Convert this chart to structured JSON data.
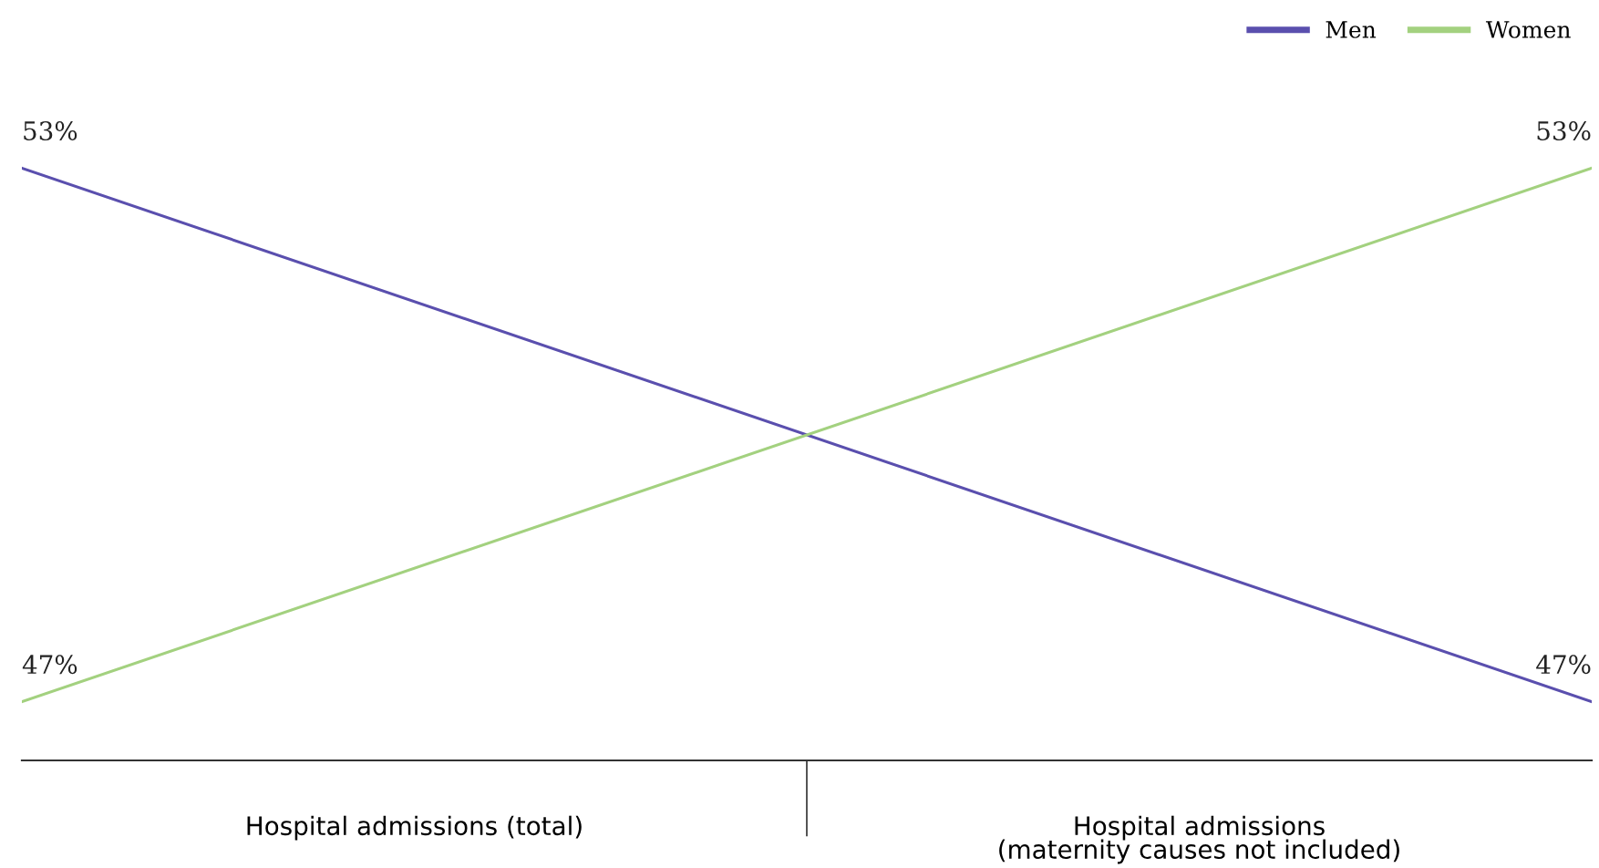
{
  "chart_data": {
    "type": "line",
    "categories": [
      null,
      null
    ],
    "annotations": [
      "Hospital admissions (total)",
      "Hospital admissions\n(maternity causes not included)"
    ],
    "series": [
      {
        "name": "Men",
        "color": "#5a4fae",
        "values": [
          53,
          47
        ],
        "value_labels": [
          "53%",
          "47%"
        ]
      },
      {
        "name": "Women",
        "color": "#a3d17f",
        "values": [
          47,
          53
        ],
        "value_labels": [
          "47%",
          "53%"
        ]
      }
    ],
    "legend": "top right",
    "grid": false,
    "marker": "none",
    "line_style": "solid"
  }
}
